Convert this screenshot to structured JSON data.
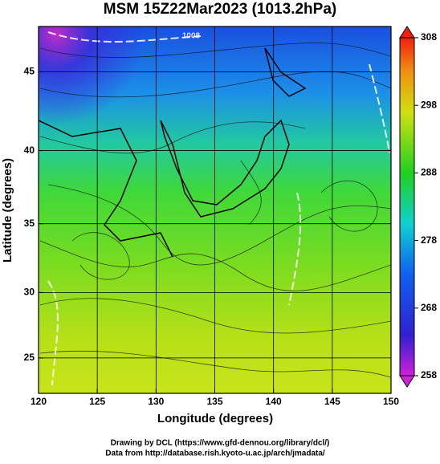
{
  "chart_data": {
    "type": "map",
    "title": "MSM 15Z22Mar2023 (1013.2hPa)",
    "xlabel": "Longitude (degrees)",
    "ylabel": "Latitude  (degrees)",
    "xlim": [
      120,
      150
    ],
    "xticks": [
      120,
      125,
      130,
      135,
      140,
      145,
      150
    ],
    "ylim": [
      22.2,
      47.7
    ],
    "yticks": [
      25,
      30,
      35,
      40,
      45
    ],
    "projection": "mercator",
    "grid": true,
    "colorbar": {
      "lim": [
        258,
        308
      ],
      "ticks": [
        258,
        268,
        278,
        288,
        298,
        308
      ]
    },
    "annotation": "1008",
    "credits": [
      "Drawing by DCL (https://www.gfd-dennou.org/library/dcl/)",
      "Data from http://database.rish.kyoto-u.ac.jp/arch/jmadata/"
    ]
  }
}
